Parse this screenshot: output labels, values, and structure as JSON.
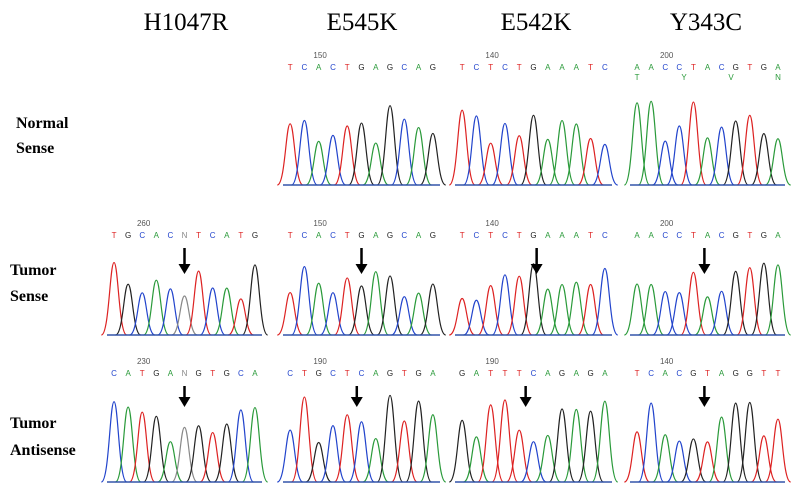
{
  "columns": [
    "H1047R",
    "E545K",
    "E542K",
    "Y343C"
  ],
  "rows": [
    {
      "label": [
        "Normal",
        "Sense"
      ],
      "panels": [
        {},
        {
          "position": "150",
          "bases": [
            "T",
            "C",
            "A",
            "C",
            "T",
            "G",
            "A",
            "G",
            "C",
            "A",
            "G"
          ]
        },
        {
          "position": "140",
          "bases": [
            "T",
            "C",
            "T",
            "C",
            "T",
            "G",
            "A",
            "A",
            "A",
            "T",
            "C"
          ]
        },
        {
          "position": "200",
          "bases": [
            "A",
            "A",
            "C",
            "C",
            "T",
            "A",
            "C",
            "G",
            "T",
            "G",
            "A"
          ],
          "codes": [
            "T",
            "Y",
            "V",
            "N"
          ]
        }
      ]
    },
    {
      "label": [
        "Tumor",
        "Sense"
      ],
      "panels": [
        {
          "position": "260",
          "bases": [
            "T",
            "G",
            "C",
            "A",
            "C",
            "N",
            "T",
            "C",
            "A",
            "T",
            "G"
          ]
        },
        {
          "position": "150",
          "bases": [
            "T",
            "C",
            "A",
            "C",
            "T",
            "G",
            "A",
            "G",
            "C",
            "A",
            "G"
          ]
        },
        {
          "position": "140",
          "bases": [
            "T",
            "C",
            "T",
            "C",
            "T",
            "G",
            "A",
            "A",
            "A",
            "T",
            "C"
          ]
        },
        {
          "position": "200",
          "bases": [
            "A",
            "A",
            "C",
            "C",
            "T",
            "A",
            "C",
            "G",
            "T",
            "G",
            "A"
          ]
        }
      ]
    },
    {
      "label": [
        "Tumor",
        "Antisense"
      ],
      "panels": [
        {
          "position": "230",
          "bases": [
            "C",
            "A",
            "T",
            "G",
            "A",
            "N",
            "G",
            "T",
            "G",
            "C",
            "A"
          ]
        },
        {
          "position": "190",
          "bases": [
            "C",
            "T",
            "G",
            "C",
            "T",
            "C",
            "A",
            "G",
            "T",
            "G",
            "A"
          ]
        },
        {
          "position": "190",
          "bases": [
            "G",
            "A",
            "T",
            "T",
            "T",
            "C",
            "A",
            "G",
            "A",
            "G",
            "A"
          ]
        },
        {
          "position": "140",
          "bases": [
            "T",
            "C",
            "A",
            "C",
            "G",
            "T",
            "A",
            "G",
            "G",
            "T",
            "T"
          ]
        }
      ]
    }
  ]
}
